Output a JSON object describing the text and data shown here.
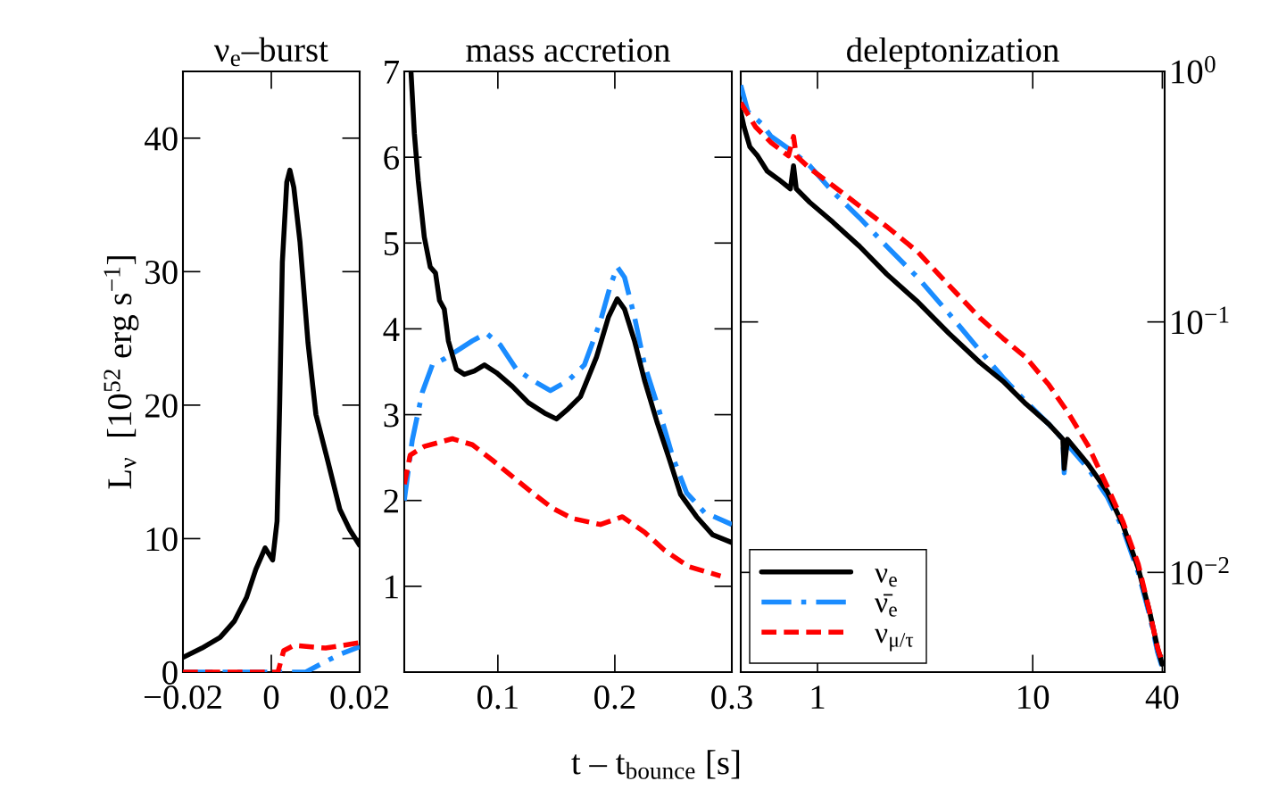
{
  "chart_data": [
    {
      "type": "line",
      "title": "ν$_{e}$–burst",
      "ylabel": "L$_{ν}$  [10$^{52}$ erg s$^{−1}$]",
      "xlim": [
        -0.02,
        0.02
      ],
      "ylim": [
        0,
        45
      ],
      "xticks": [
        {
          "value": -0.02,
          "label": "−0.02"
        },
        0,
        0.02
      ],
      "yticks": [
        0,
        10,
        20,
        30,
        40
      ],
      "grid": false,
      "legend": false,
      "series": [
        {
          "color": "#000000",
          "line_style": "solid",
          "x": [
            -0.02,
            -0.0157,
            -0.0116,
            -0.0084,
            -0.0056,
            -0.0035,
            -0.0014,
            0.0003,
            0.0013,
            0.0019,
            0.0025,
            0.0035,
            0.0042,
            0.0051,
            0.0065,
            0.0083,
            0.0101,
            0.0128,
            0.0155,
            0.0177,
            0.02
          ],
          "values": [
            1.1,
            1.8,
            2.6,
            3.8,
            5.6,
            7.7,
            9.3,
            8.4,
            11.3,
            20.2,
            30.7,
            36.7,
            37.6,
            36.3,
            32.2,
            24.7,
            19.3,
            15.8,
            12.2,
            10.7,
            9.5
          ]
        },
        {
          "color": "#1a8cff",
          "line_style": "dashdot",
          "x": [
            -0.02,
            0.0078,
            0.0123,
            0.016,
            0.02
          ],
          "values": [
            0,
            0,
            0.8,
            1.4,
            1.9
          ]
        },
        {
          "color": "#ff0000",
          "line_style": "dashed",
          "x": [
            -0.02,
            0.0015,
            0.0028,
            0.0051,
            0.0123,
            0.02
          ],
          "values": [
            0,
            0,
            1.6,
            2.0,
            1.8,
            2.2
          ]
        }
      ]
    },
    {
      "type": "line",
      "title": "mass accretion",
      "xlabel": "t – t$_{bounce}$ [s]",
      "xlim": [
        0.02,
        0.3
      ],
      "ylim": [
        0,
        7
      ],
      "xticks": [
        0.1,
        0.2,
        0.3
      ],
      "yticks": [
        1,
        2,
        3,
        4,
        5,
        6,
        7
      ],
      "grid": false,
      "legend": false,
      "series": [
        {
          "color": "#000000",
          "line_style": "solid",
          "x": [
            0.0258,
            0.0286,
            0.032,
            0.0371,
            0.0422,
            0.0467,
            0.0501,
            0.0542,
            0.0577,
            0.0645,
            0.0713,
            0.0799,
            0.0885,
            0.0987,
            0.1124,
            0.1261,
            0.1398,
            0.1501,
            0.1603,
            0.1706,
            0.1843,
            0.1946,
            0.2021,
            0.2083,
            0.2168,
            0.2254,
            0.2357,
            0.2459,
            0.2562,
            0.2699,
            0.2836,
            0.3
          ],
          "values": [
            6.98,
            6.28,
            5.72,
            5.07,
            4.72,
            4.65,
            4.33,
            4.23,
            3.86,
            3.53,
            3.47,
            3.51,
            3.58,
            3.49,
            3.33,
            3.14,
            3.02,
            2.95,
            3.07,
            3.21,
            3.67,
            4.14,
            4.35,
            4.23,
            3.86,
            3.4,
            2.93,
            2.51,
            2.07,
            1.81,
            1.6,
            1.51
          ]
        },
        {
          "color": "#1a8cff",
          "line_style": "dashdot",
          "x": [
            0.02,
            0.0268,
            0.0354,
            0.044,
            0.0542,
            0.0679,
            0.0782,
            0.0902,
            0.1022,
            0.1158,
            0.1295,
            0.1449,
            0.1603,
            0.174,
            0.1877,
            0.1963,
            0.2021,
            0.2083,
            0.2168,
            0.2254,
            0.2374,
            0.2494,
            0.2613,
            0.2767,
            0.3
          ],
          "values": [
            2.0,
            2.7,
            3.26,
            3.58,
            3.65,
            3.77,
            3.86,
            3.95,
            3.81,
            3.53,
            3.4,
            3.28,
            3.4,
            3.58,
            4.09,
            4.51,
            4.72,
            4.6,
            4.14,
            3.58,
            3.07,
            2.51,
            2.09,
            1.86,
            1.72
          ]
        },
        {
          "color": "#ff0000",
          "line_style": "dashed",
          "x": [
            0.02,
            0.0251,
            0.0371,
            0.0611,
            0.0782,
            0.0953,
            0.1124,
            0.1295,
            0.1467,
            0.1638,
            0.1877,
            0.2065,
            0.2254,
            0.2425,
            0.263,
            0.2904
          ],
          "values": [
            2.19,
            2.53,
            2.63,
            2.72,
            2.65,
            2.47,
            2.28,
            2.09,
            1.91,
            1.79,
            1.72,
            1.81,
            1.63,
            1.42,
            1.23,
            1.12
          ]
        }
      ]
    },
    {
      "type": "line",
      "title": "deleptonization",
      "log": "xy",
      "xlim": [
        0.44,
        41
      ],
      "ylim": [
        0.004,
        1
      ],
      "xticks": [
        1,
        10,
        40
      ],
      "yticks": [
        {
          "value": 1,
          "label": "10$^{0}$"
        },
        {
          "value": 0.1,
          "label": "10$^{−1}$"
        },
        {
          "value": 0.01,
          "label": "10$^{−2}$"
        }
      ],
      "grid": false,
      "legend": "bottom left",
      "series": [
        {
          "name": "ν$_{e}$",
          "color": "#000000",
          "line_style": "solid",
          "x": [
            0.44,
            0.456,
            0.485,
            0.527,
            0.584,
            0.661,
            0.748,
            0.774,
            0.797,
            0.921,
            1.18,
            1.57,
            2.1,
            2.93,
            4.08,
            5.67,
            7.27,
            9.31,
            11.9,
            13.8,
            14.0,
            14.5,
            18.1,
            22.2,
            26.2,
            30.9,
            35.0,
            38.0,
            39.9
          ],
          "values": [
            0.69,
            0.6,
            0.5,
            0.46,
            0.4,
            0.37,
            0.34,
            0.42,
            0.34,
            0.3,
            0.25,
            0.2,
            0.155,
            0.12,
            0.09,
            0.069,
            0.058,
            0.047,
            0.039,
            0.034,
            0.026,
            0.034,
            0.027,
            0.021,
            0.0155,
            0.0104,
            0.0069,
            0.005,
            0.0043
          ]
        },
        {
          "name": "ν̄$_{e}$",
          "color": "#1a8cff",
          "line_style": "dashdot",
          "x": [
            0.44,
            0.475,
            0.549,
            0.609,
            0.764,
            0.921,
            1.18,
            1.57,
            2.1,
            2.93,
            4.08,
            5.67,
            7.27,
            9.31,
            11.9,
            13.8,
            14.0,
            14.2,
            18.1,
            22.2,
            26.2,
            30.9,
            35.0,
            38.0,
            39.9
          ],
          "values": [
            0.88,
            0.69,
            0.62,
            0.55,
            0.48,
            0.42,
            0.33,
            0.26,
            0.2,
            0.15,
            0.108,
            0.077,
            0.06,
            0.048,
            0.039,
            0.034,
            0.025,
            0.033,
            0.026,
            0.02,
            0.015,
            0.01,
            0.0067,
            0.0048,
            0.0042
          ]
        },
        {
          "name": "ν$_{μ/τ}$",
          "color": "#ff0000",
          "line_style": "dashed",
          "x": [
            0.44,
            0.516,
            0.609,
            0.733,
            0.774,
            0.797,
            0.921,
            1.18,
            1.57,
            2.1,
            2.93,
            4.08,
            5.67,
            7.27,
            9.31,
            11.9,
            14.7,
            18.1,
            22.2,
            26.2,
            30.9,
            35.0,
            38.0,
            39.9
          ],
          "values": [
            0.75,
            0.6,
            0.52,
            0.46,
            0.55,
            0.46,
            0.41,
            0.35,
            0.29,
            0.24,
            0.19,
            0.14,
            0.104,
            0.086,
            0.072,
            0.056,
            0.043,
            0.032,
            0.022,
            0.016,
            0.0108,
            0.0069,
            0.005,
            0.0044
          ]
        }
      ]
    }
  ]
}
